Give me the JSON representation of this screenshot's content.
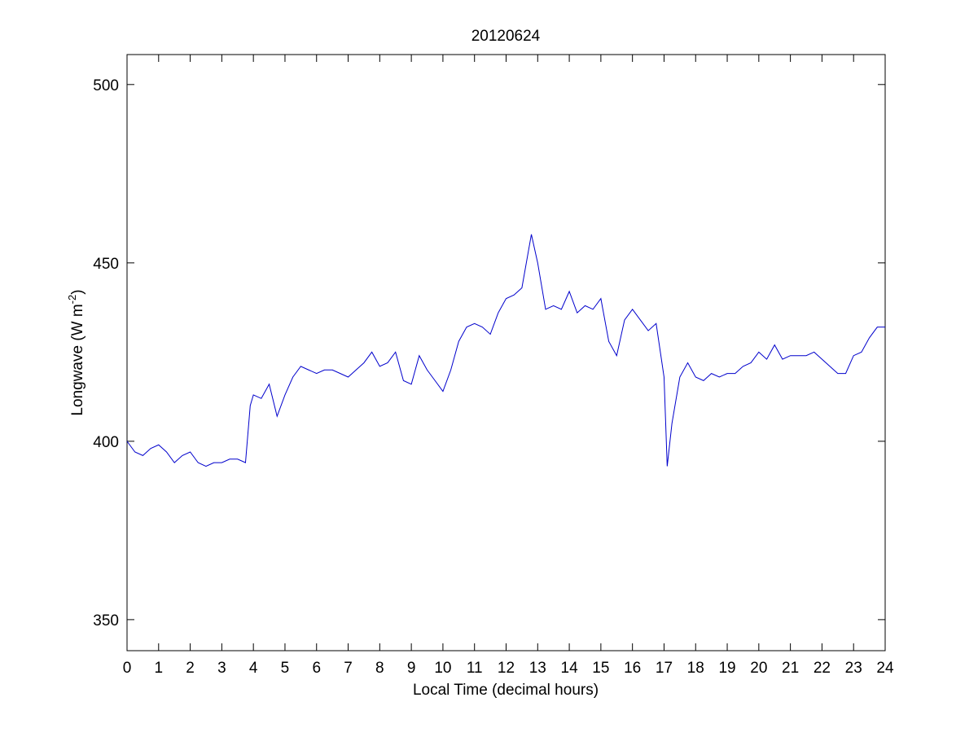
{
  "chart_data": {
    "type": "line",
    "title": "20120624",
    "xlabel": "Local Time (decimal hours)",
    "ylabel": {
      "text": "Longwave (W m",
      "superscript": "-2",
      "suffix": ")"
    },
    "color": "#0000cc",
    "x": [
      0,
      0.25,
      0.5,
      0.75,
      1,
      1.25,
      1.5,
      1.75,
      2,
      2.25,
      2.5,
      2.75,
      3,
      3.25,
      3.5,
      3.75,
      3.9,
      4,
      4.25,
      4.5,
      4.75,
      5,
      5.25,
      5.5,
      5.75,
      6,
      6.25,
      6.5,
      6.75,
      7,
      7.25,
      7.5,
      7.75,
      8,
      8.25,
      8.5,
      8.75,
      9,
      9.25,
      9.5,
      9.75,
      10,
      10.25,
      10.5,
      10.75,
      11,
      11.25,
      11.5,
      11.75,
      12,
      12.25,
      12.5,
      12.8,
      13,
      13.25,
      13.5,
      13.75,
      14,
      14.25,
      14.5,
      14.75,
      15,
      15.25,
      15.5,
      15.75,
      16,
      16.25,
      16.5,
      16.75,
      17,
      17.1,
      17.25,
      17.5,
      17.75,
      18,
      18.25,
      18.5,
      18.75,
      19,
      19.25,
      19.5,
      19.75,
      20,
      20.25,
      20.5,
      20.75,
      21,
      21.25,
      21.5,
      21.75,
      22,
      22.25,
      22.5,
      22.75,
      23,
      23.25,
      23.5,
      23.75,
      24
    ],
    "values": [
      400,
      397,
      396,
      398,
      399,
      397,
      394,
      396,
      397,
      394,
      393,
      394,
      394,
      395,
      395,
      394,
      410,
      413,
      412,
      416,
      407,
      413,
      418,
      421,
      420,
      419,
      420,
      420,
      419,
      418,
      420,
      422,
      425,
      421,
      422,
      425,
      417,
      416,
      424,
      420,
      417,
      414,
      420,
      428,
      432,
      433,
      432,
      430,
      436,
      440,
      441,
      443,
      458,
      450,
      437,
      438,
      437,
      442,
      436,
      438,
      437,
      440,
      428,
      424,
      434,
      437,
      434,
      431,
      433,
      418,
      393,
      405,
      418,
      422,
      418,
      417,
      419,
      418,
      419,
      419,
      421,
      422,
      425,
      423,
      427,
      423,
      424,
      424,
      424,
      425,
      423,
      421,
      419,
      419,
      424,
      425,
      429,
      432,
      432
    ],
    "xlim": [
      0,
      24
    ],
    "ylim": [
      341.3,
      508.4
    ],
    "xticks": [
      0,
      1,
      2,
      3,
      4,
      5,
      6,
      7,
      8,
      9,
      10,
      11,
      12,
      13,
      14,
      15,
      16,
      17,
      18,
      19,
      20,
      21,
      22,
      23,
      24
    ],
    "yticks": [
      350,
      400,
      450,
      500
    ]
  }
}
